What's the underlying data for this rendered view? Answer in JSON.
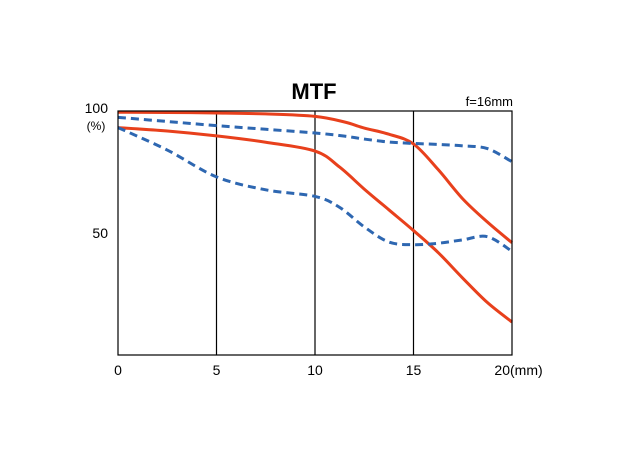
{
  "chart_data": {
    "type": "line",
    "title": "MTF",
    "subtitle": "f=16mm",
    "xlabel": "(mm)",
    "ylabel": "(%)",
    "xlim": [
      0,
      20
    ],
    "ylim": [
      0,
      100
    ],
    "x_ticks": [
      "0",
      "5",
      "10",
      "15",
      "20"
    ],
    "y_ticks": [
      "100",
      "50"
    ],
    "x_tick_values": [
      0,
      5,
      10,
      15,
      20
    ],
    "y_tick_values": [
      100,
      50
    ],
    "grid": "vertical",
    "colors": {
      "red": "#e8401c",
      "blue": "#2e67b1",
      "grid": "#000000",
      "background": "#ffffff"
    },
    "series": [
      {
        "color": "red",
        "dash": "solid",
        "x": [
          0,
          2.5,
          5,
          7.5,
          10,
          11.5,
          12.5,
          13.75,
          15,
          16.25,
          17.5,
          18.75,
          20
        ],
        "values": [
          99.5,
          99.4,
          99.2,
          98.8,
          97.8,
          95.5,
          93,
          90.5,
          86.5,
          76,
          64,
          54.5,
          46
        ]
      },
      {
        "color": "red",
        "dash": "solid",
        "x": [
          0,
          2.5,
          5,
          7.5,
          10,
          11.25,
          12.5,
          13.75,
          15,
          16.25,
          17.5,
          18.75,
          20
        ],
        "values": [
          93.2,
          91.8,
          89.8,
          87.2,
          83.6,
          77,
          68,
          59.5,
          51,
          42,
          31.5,
          21.5,
          13.5
        ]
      },
      {
        "color": "blue",
        "dash": "dashed",
        "x": [
          0,
          2.5,
          5,
          7.5,
          10,
          11.5,
          12.5,
          13.75,
          15,
          16.25,
          17.5,
          18.75,
          20
        ],
        "values": [
          97.4,
          95.7,
          94,
          92.5,
          91,
          89.7,
          88.5,
          87.3,
          86.7,
          86.3,
          85.7,
          84.6,
          79.2
        ]
      },
      {
        "color": "blue",
        "dash": "dashed",
        "x": [
          0,
          2.5,
          5,
          7.5,
          10,
          11.25,
          12.5,
          13.75,
          15,
          16.25,
          17.5,
          18.75,
          20
        ],
        "values": [
          93.2,
          84,
          73,
          67.7,
          65,
          60.5,
          52.5,
          46.3,
          45.2,
          45.8,
          47.2,
          48.5,
          42.5
        ]
      }
    ]
  }
}
